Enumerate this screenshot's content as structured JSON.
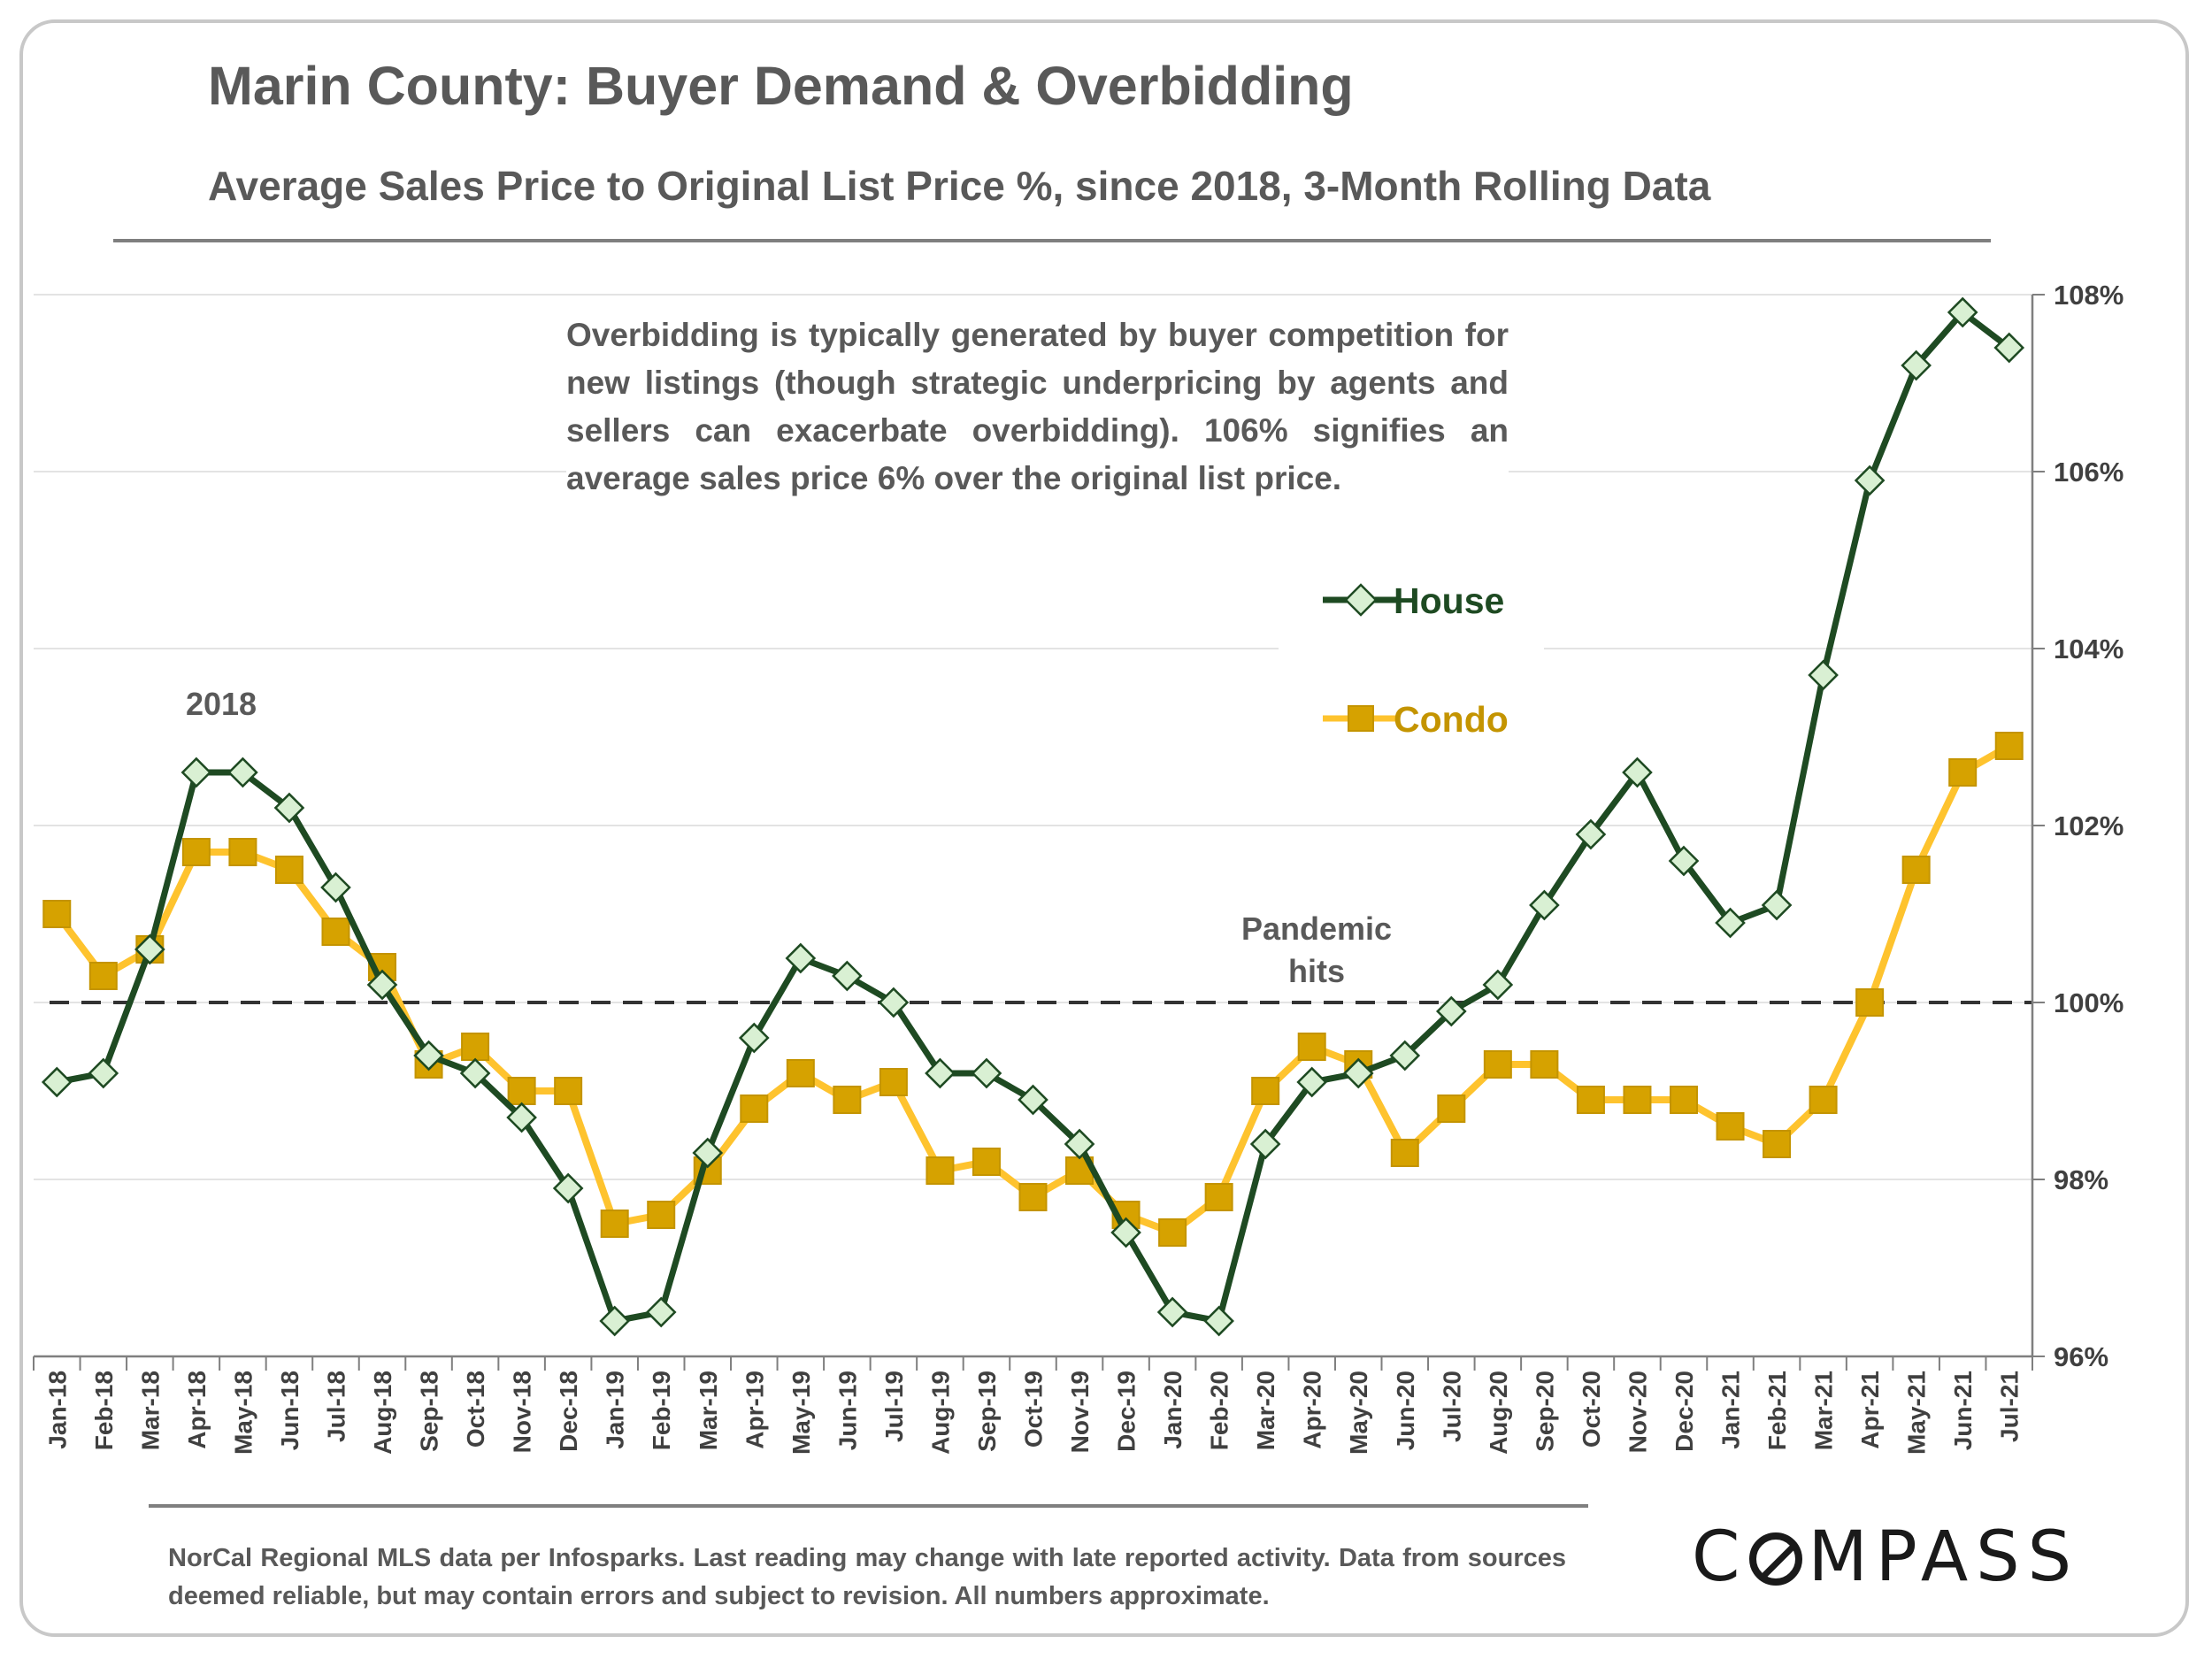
{
  "title": "Marin County: Buyer Demand & Overbidding",
  "subtitle": "Average Sales Price to Original List Price %, since 2018, 3-Month Rolling Data",
  "annotation": "Overbidding is typically generated by buyer competition for new listings (though strategic underpricing by agents and sellers can exacerbate overbidding). 106% signifies an average sales price 6% over the original list price.",
  "labels": {
    "year_2018": "2018",
    "pandemic_line1": "Pandemic",
    "pandemic_line2": "hits"
  },
  "footnote": "NorCal Regional MLS data per Infosparks. Last reading may change with late reported activity. Data from sources deemed reliable, but may contain errors and subject to revision. All numbers approximate.",
  "logo": {
    "text_before": "C",
    "text_after": "MPASS"
  },
  "chart_data": {
    "type": "line",
    "x": [
      "Jan-18",
      "Feb-18",
      "Mar-18",
      "Apr-18",
      "May-18",
      "Jun-18",
      "Jul-18",
      "Aug-18",
      "Sep-18",
      "Oct-18",
      "Nov-18",
      "Dec-18",
      "Jan-19",
      "Feb-19",
      "Mar-19",
      "Apr-19",
      "May-19",
      "Jun-19",
      "Jul-19",
      "Aug-19",
      "Sep-19",
      "Oct-19",
      "Nov-19",
      "Dec-19",
      "Jan-20",
      "Feb-20",
      "Mar-20",
      "Apr-20",
      "May-20",
      "Jun-20",
      "Jul-20",
      "Aug-20",
      "Sep-20",
      "Oct-20",
      "Nov-20",
      "Dec-20",
      "Jan-21",
      "Feb-21",
      "Mar-21",
      "Apr-21",
      "May-21",
      "Jun-21",
      "Jul-21"
    ],
    "series": [
      {
        "name": "House",
        "color": "#1e4a22",
        "marker": "diamond",
        "values": [
          99.1,
          99.2,
          100.6,
          102.6,
          102.6,
          102.2,
          101.3,
          100.2,
          99.4,
          99.2,
          98.7,
          97.9,
          96.4,
          96.5,
          98.3,
          99.6,
          100.5,
          100.3,
          100.0,
          99.2,
          99.2,
          98.9,
          98.4,
          97.4,
          96.5,
          96.4,
          98.4,
          99.1,
          99.2,
          99.4,
          99.9,
          100.2,
          101.1,
          101.9,
          102.6,
          101.6,
          100.9,
          101.1,
          103.7,
          105.9,
          107.2,
          107.8,
          107.4
        ]
      },
      {
        "name": "Condo",
        "color": "#fec32e",
        "marker": "square",
        "values": [
          101.0,
          100.3,
          100.6,
          101.7,
          101.7,
          101.5,
          100.8,
          100.4,
          99.3,
          99.5,
          99.0,
          99.0,
          97.5,
          97.6,
          98.1,
          98.8,
          99.2,
          98.9,
          99.1,
          98.1,
          98.2,
          97.8,
          98.1,
          97.6,
          97.4,
          97.8,
          99.0,
          99.5,
          99.3,
          98.3,
          98.8,
          99.3,
          99.3,
          98.9,
          98.9,
          98.9,
          98.6,
          98.4,
          98.9,
          100.0,
          101.5,
          102.6,
          102.9
        ]
      }
    ],
    "ylim": [
      96,
      108
    ],
    "yticks": [
      96,
      98,
      100,
      102,
      104,
      106,
      108
    ],
    "ytick_labels": [
      "96%",
      "98%",
      "100%",
      "102%",
      "104%",
      "106%",
      "108%"
    ],
    "y_axis_side": "right",
    "reference_line": 100,
    "grid": "horizontal",
    "legend_placement": "center-right",
    "xlabel": "",
    "ylabel": ""
  }
}
